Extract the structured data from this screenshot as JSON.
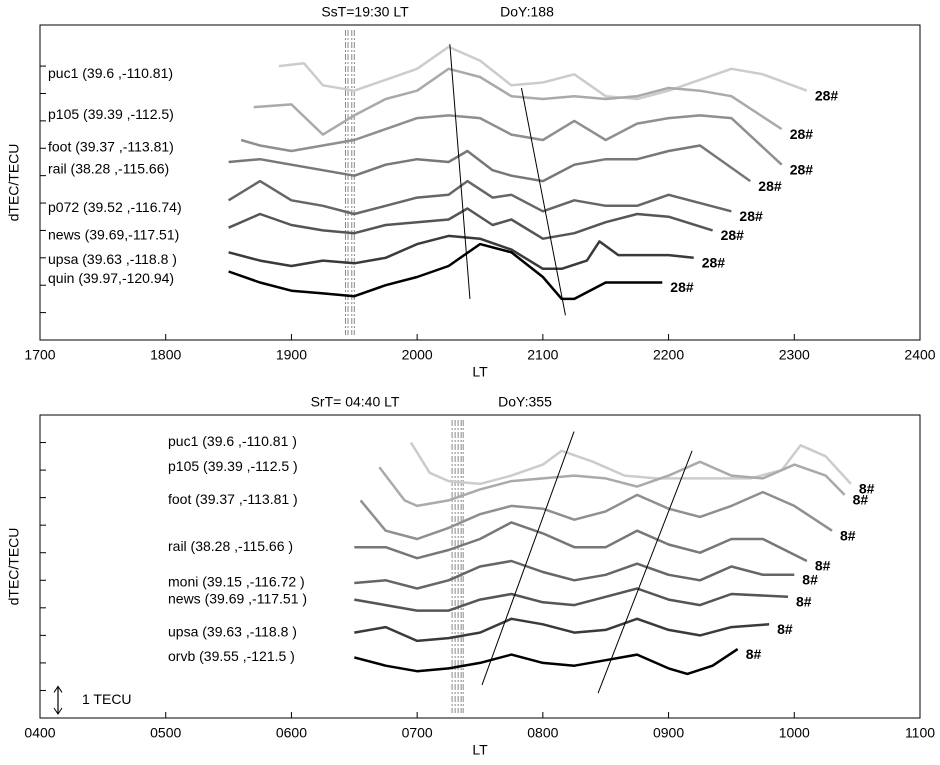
{
  "chart_data": [
    {
      "type": "line",
      "title": "SsT=19:30 LT",
      "subtitle": "DoY:188",
      "xlabel": "LT",
      "ylabel": "dTEC/TECU",
      "xlim": [
        1700,
        2400
      ],
      "xticks": [
        1700,
        1800,
        1900,
        2000,
        2100,
        2200,
        2300,
        2400
      ],
      "ylim": [
        0,
        11.5
      ],
      "yticks": [
        1,
        2,
        3,
        4,
        5,
        6,
        7,
        8,
        9,
        10
      ],
      "ytick_labels": false,
      "vlines": [
        1943,
        1945,
        1948,
        1950
      ],
      "fit_lines": [
        [
          2026,
          10.8,
          2042,
          1.5
        ],
        [
          2083,
          9.2,
          2118,
          0.9
        ]
      ],
      "series": [
        {
          "name": "puc1 (39.6 ,-110.81)",
          "color": "#cccccc",
          "end_label": "28#",
          "x": [
            1890,
            1910,
            1925,
            1950,
            1975,
            2000,
            2025,
            2050,
            2075,
            2100,
            2125,
            2150,
            2175,
            2200,
            2225,
            2250,
            2275,
            2310
          ],
          "values": [
            10.0,
            10.1,
            9.3,
            9.1,
            9.5,
            9.9,
            10.7,
            10.2,
            9.3,
            9.4,
            9.7,
            8.9,
            8.8,
            9.1,
            9.5,
            9.9,
            9.7,
            9.1
          ]
        },
        {
          "name": "p105 (39.39 ,-112.5)",
          "color": "#aaaaaa",
          "end_label": "28#",
          "x": [
            1870,
            1900,
            1925,
            1950,
            1975,
            2000,
            2025,
            2050,
            2075,
            2100,
            2125,
            2150,
            2175,
            2200,
            2225,
            2250,
            2290
          ],
          "values": [
            8.5,
            8.6,
            7.5,
            8.2,
            8.8,
            9.1,
            9.9,
            9.6,
            8.9,
            8.8,
            8.9,
            8.8,
            8.9,
            9.2,
            9.1,
            8.9,
            7.7
          ]
        },
        {
          "name": "foot (39.37 ,-113.81)",
          "color": "#8f8f8f",
          "end_label": "28#",
          "x": [
            1860,
            1875,
            1900,
            1925,
            1950,
            1975,
            2000,
            2025,
            2050,
            2075,
            2100,
            2125,
            2150,
            2175,
            2200,
            2225,
            2250,
            2290
          ],
          "values": [
            7.3,
            7.1,
            6.9,
            7.1,
            7.3,
            7.7,
            8.1,
            8.2,
            8.1,
            7.5,
            7.3,
            8.0,
            7.3,
            7.9,
            8.1,
            8.2,
            8.1,
            6.4
          ]
        },
        {
          "name": "rail (38.28 ,-115.66)",
          "color": "#777777",
          "end_label": "28#",
          "x": [
            1850,
            1875,
            1900,
            1925,
            1950,
            1975,
            2000,
            2025,
            2040,
            2060,
            2075,
            2100,
            2125,
            2150,
            2175,
            2200,
            2225,
            2265
          ],
          "values": [
            6.5,
            6.6,
            6.4,
            6.2,
            6.0,
            6.4,
            6.6,
            6.5,
            6.9,
            6.2,
            6.0,
            5.8,
            6.4,
            6.6,
            6.6,
            6.9,
            7.1,
            5.8
          ]
        },
        {
          "name": "p072 (39.52 ,-116.74)",
          "color": "#666666",
          "end_label": "28#",
          "x": [
            1850,
            1875,
            1900,
            1925,
            1950,
            1975,
            2000,
            2025,
            2040,
            2060,
            2075,
            2100,
            2125,
            2150,
            2175,
            2200,
            2250
          ],
          "values": [
            5.1,
            5.8,
            5.1,
            4.9,
            4.6,
            4.9,
            5.2,
            5.3,
            5.8,
            5.2,
            5.3,
            4.7,
            5.1,
            4.9,
            4.9,
            5.3,
            4.7
          ]
        },
        {
          "name": "news (39.69,-117.51)",
          "color": "#555555",
          "end_label": "28#",
          "x": [
            1850,
            1875,
            1900,
            1925,
            1950,
            1975,
            2000,
            2025,
            2040,
            2060,
            2075,
            2100,
            2125,
            2150,
            2175,
            2200,
            2235
          ],
          "values": [
            4.1,
            4.6,
            4.2,
            4.0,
            3.9,
            4.2,
            4.3,
            4.4,
            4.8,
            4.2,
            4.4,
            3.7,
            3.9,
            4.3,
            4.6,
            4.5,
            4.0
          ]
        },
        {
          "name": "upsa (39.63 ,-118.8 )",
          "color": "#3a3a3a",
          "end_label": "28#",
          "x": [
            1850,
            1875,
            1900,
            1925,
            1950,
            1975,
            2000,
            2025,
            2050,
            2075,
            2100,
            2115,
            2135,
            2145,
            2160,
            2200,
            2220
          ],
          "values": [
            3.2,
            2.9,
            2.7,
            2.9,
            2.8,
            3.0,
            3.5,
            3.8,
            3.7,
            3.3,
            2.6,
            2.6,
            2.9,
            3.6,
            3.1,
            3.1,
            3.0
          ]
        },
        {
          "name": "quin (39.97,-120.94)",
          "color": "#000000",
          "end_label": "28#",
          "x": [
            1850,
            1875,
            1900,
            1925,
            1950,
            1975,
            2000,
            2025,
            2050,
            2075,
            2100,
            2115,
            2125,
            2150,
            2175,
            2195
          ],
          "values": [
            2.5,
            2.1,
            1.8,
            1.7,
            1.6,
            2.0,
            2.3,
            2.7,
            3.5,
            3.2,
            2.3,
            1.5,
            1.5,
            2.1,
            2.1,
            2.1
          ]
        }
      ]
    },
    {
      "type": "line",
      "title": "SrT= 04:40  LT",
      "subtitle": "DoY:355",
      "xlabel": "LT",
      "ylabel": "dTEC/TECU",
      "xlim": [
        400,
        1100
      ],
      "xticks": [
        {
          "value": 400,
          "label": "0400"
        },
        {
          "value": 500,
          "label": "0500"
        },
        {
          "value": 600,
          "label": "0600"
        },
        {
          "value": 700,
          "label": "0700"
        },
        {
          "value": 800,
          "label": "0800"
        },
        {
          "value": 900,
          "label": "0900"
        },
        1000,
        1100
      ],
      "ylim": [
        0,
        11
      ],
      "yticks": [
        1,
        2,
        3,
        4,
        5,
        6,
        7,
        8,
        9,
        10
      ],
      "ytick_labels": false,
      "vlines": [
        727.8,
        730.2,
        732.6,
        735,
        736.6
      ],
      "fit_lines": [
        [
          751.6,
          1.2,
          824.8,
          10.4
        ],
        [
          843.9,
          0.9,
          918.7,
          9.7
        ]
      ],
      "scale_bar": {
        "label": "1 TECU",
        "value": 1
      },
      "series": [
        {
          "name": "puc1 (39.6 ,-110.81 )",
          "color": "#cccccc",
          "end_label": "8#",
          "x": [
            695,
            710,
            725,
            750,
            775,
            800,
            815,
            840,
            865,
            890,
            915,
            940,
            965,
            990,
            1005,
            1025,
            1045
          ],
          "values": [
            10.0,
            8.9,
            8.6,
            8.5,
            8.8,
            9.2,
            9.7,
            9.3,
            8.8,
            8.7,
            8.7,
            8.7,
            8.7,
            9.0,
            9.9,
            9.5,
            8.5
          ]
        },
        {
          "name": "p105 (39.39 ,-112.5  )",
          "color": "#aaaaaa",
          "end_label": "8#",
          "x": [
            670,
            690,
            700,
            725,
            750,
            775,
            800,
            825,
            850,
            875,
            900,
            925,
            950,
            975,
            1000,
            1025,
            1040
          ],
          "values": [
            9.1,
            7.9,
            7.7,
            7.9,
            8.3,
            8.6,
            8.7,
            8.8,
            8.7,
            8.4,
            8.8,
            9.3,
            8.8,
            8.7,
            9.2,
            8.8,
            8.1
          ]
        },
        {
          "name": "foot (39.37 ,-113.81 )",
          "color": "#8f8f8f",
          "end_label": "8#",
          "x": [
            655,
            675,
            700,
            725,
            750,
            775,
            800,
            825,
            850,
            875,
            900,
            925,
            950,
            975,
            1000,
            1030
          ],
          "values": [
            7.9,
            6.8,
            6.5,
            6.9,
            7.4,
            7.7,
            7.6,
            7.2,
            7.5,
            8.1,
            7.6,
            7.3,
            7.7,
            8.2,
            7.7,
            6.8
          ]
        },
        {
          "name": "rail (38.28 ,-115.66  )",
          "color": "#777777",
          "end_label": "8#",
          "x": [
            650,
            675,
            700,
            725,
            750,
            775,
            800,
            825,
            850,
            875,
            900,
            925,
            950,
            975,
            1010
          ],
          "values": [
            6.2,
            6.2,
            5.8,
            6.1,
            6.5,
            7.1,
            6.7,
            6.2,
            6.2,
            6.8,
            6.3,
            6.0,
            6.5,
            6.5,
            5.7
          ]
        },
        {
          "name": "moni (39.15 ,-116.72  )",
          "color": "#666666",
          "end_label": "8#",
          "x": [
            650,
            675,
            700,
            725,
            750,
            775,
            800,
            825,
            850,
            875,
            900,
            925,
            950,
            975,
            1000
          ],
          "values": [
            4.9,
            5.0,
            4.7,
            5.0,
            5.5,
            5.7,
            5.3,
            5.0,
            5.2,
            5.6,
            5.2,
            5.0,
            5.5,
            5.2,
            5.2
          ]
        },
        {
          "name": "news (39.69 ,-117.51  )",
          "color": "#555555",
          "end_label": "8#",
          "x": [
            650,
            675,
            700,
            725,
            750,
            775,
            800,
            825,
            850,
            875,
            900,
            925,
            950,
            995
          ],
          "values": [
            4.3,
            4.1,
            3.9,
            3.9,
            4.3,
            4.5,
            4.2,
            4.1,
            4.4,
            4.7,
            4.3,
            4.1,
            4.5,
            4.4
          ]
        },
        {
          "name": "upsa (39.63 ,-118.8  )",
          "color": "#3a3a3a",
          "end_label": "8#",
          "x": [
            650,
            675,
            700,
            725,
            750,
            775,
            800,
            825,
            850,
            875,
            900,
            925,
            950,
            980
          ],
          "values": [
            3.1,
            3.3,
            2.8,
            2.9,
            3.1,
            3.6,
            3.4,
            3.1,
            3.2,
            3.6,
            3.2,
            3.0,
            3.3,
            3.4
          ]
        },
        {
          "name": "orvb (39.55 ,-121.5  )",
          "color": "#000000",
          "end_label": "8#",
          "x": [
            650,
            675,
            700,
            725,
            750,
            775,
            800,
            825,
            850,
            875,
            900,
            915,
            935,
            955
          ],
          "values": [
            2.2,
            1.9,
            1.7,
            1.8,
            2.0,
            2.3,
            2.0,
            1.9,
            2.1,
            2.3,
            1.8,
            1.6,
            1.9,
            2.5
          ]
        }
      ]
    }
  ]
}
